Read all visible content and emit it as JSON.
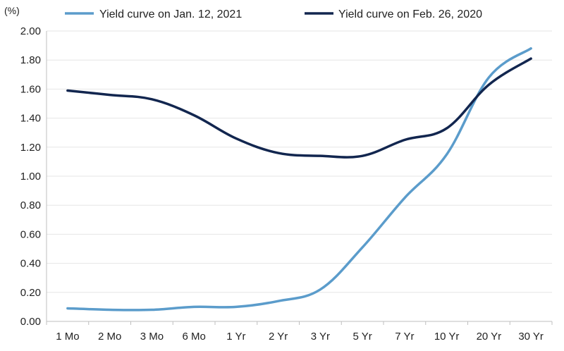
{
  "chart_data": {
    "type": "line",
    "title": "",
    "xlabel": "",
    "ylabel": "(%)",
    "categories": [
      "1 Mo",
      "2 Mo",
      "3 Mo",
      "6 Mo",
      "1 Yr",
      "2 Yr",
      "3 Yr",
      "5 Yr",
      "7 Yr",
      "10 Yr",
      "20 Yr",
      "30 Yr"
    ],
    "ylim": [
      0,
      2
    ],
    "yticks": [
      "0.00",
      "0.20",
      "0.40",
      "0.60",
      "0.80",
      "1.00",
      "1.20",
      "1.40",
      "1.60",
      "1.80",
      "2.00"
    ],
    "grid": true,
    "legend_position": "top",
    "series": [
      {
        "name": "Yield curve on Jan. 12, 2021",
        "color": "#5b9ccb",
        "values": [
          0.09,
          0.08,
          0.08,
          0.1,
          0.1,
          0.14,
          0.22,
          0.51,
          0.85,
          1.15,
          1.68,
          1.88
        ]
      },
      {
        "name": "Yield curve on Feb. 26, 2020",
        "color": "#12264f",
        "values": [
          1.59,
          1.56,
          1.53,
          1.42,
          1.26,
          1.16,
          1.14,
          1.14,
          1.25,
          1.33,
          1.63,
          1.81
        ]
      }
    ]
  }
}
